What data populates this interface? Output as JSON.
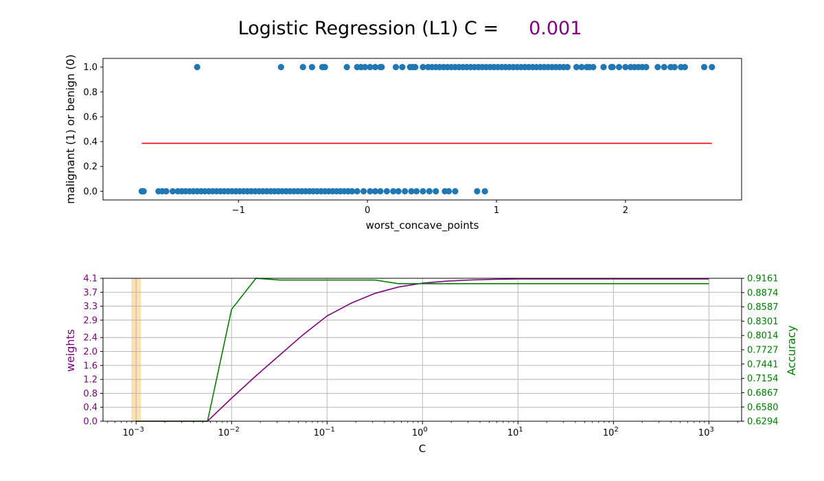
{
  "title": {
    "prefix": "Logistic Regression (L1) C =",
    "value": "0.001",
    "value_color": "#800080"
  },
  "chart_data": [
    {
      "type": "scatter",
      "xlabel": "worst_concave_points",
      "ylabel": "malignant (1) or benign (0)",
      "xlim": [
        -2.05,
        2.9
      ],
      "ylim": [
        -0.07,
        1.07
      ],
      "x_ticks": [
        -1,
        0,
        1,
        2
      ],
      "x_tick_labels": [
        "−1",
        "0",
        "1",
        "2"
      ],
      "y_ticks": [
        0.0,
        0.2,
        0.4,
        0.6,
        0.8,
        1.0
      ],
      "y_tick_labels": [
        "0.0",
        "0.2",
        "0.4",
        "0.6",
        "0.8",
        "1.0"
      ],
      "grid": false,
      "point_color": "#1f77b4",
      "series": [
        {
          "values": [
            [
              -1.75,
              0
            ],
            [
              -1.745,
              0
            ],
            [
              -1.74,
              0
            ],
            [
              -1.74,
              0
            ],
            [
              -1.735,
              0
            ],
            [
              -1.62,
              0
            ],
            [
              -1.59,
              0
            ],
            [
              -1.56,
              0
            ],
            [
              -1.51,
              0
            ],
            [
              -1.47,
              0
            ],
            [
              -1.44,
              0
            ],
            [
              -1.41,
              0
            ],
            [
              -1.38,
              0
            ],
            [
              -1.35,
              0
            ],
            [
              -1.32,
              0
            ],
            [
              -1.29,
              0
            ],
            [
              -1.26,
              0
            ],
            [
              -1.23,
              0
            ],
            [
              -1.2,
              0
            ],
            [
              -1.17,
              0
            ],
            [
              -1.14,
              0
            ],
            [
              -1.11,
              0
            ],
            [
              -1.08,
              0
            ],
            [
              -1.05,
              0
            ],
            [
              -1.02,
              0
            ],
            [
              -0.99,
              0
            ],
            [
              -0.96,
              0
            ],
            [
              -0.93,
              0
            ],
            [
              -0.9,
              0
            ],
            [
              -0.87,
              0
            ],
            [
              -0.84,
              0
            ],
            [
              -0.81,
              0
            ],
            [
              -0.78,
              0
            ],
            [
              -0.75,
              0
            ],
            [
              -0.72,
              0
            ],
            [
              -0.69,
              0
            ],
            [
              -0.66,
              0
            ],
            [
              -0.63,
              0
            ],
            [
              -0.6,
              0
            ],
            [
              -0.57,
              0
            ],
            [
              -0.54,
              0
            ],
            [
              -0.51,
              0
            ],
            [
              -0.48,
              0
            ],
            [
              -0.45,
              0
            ],
            [
              -0.42,
              0
            ],
            [
              -0.39,
              0
            ],
            [
              -0.36,
              0
            ],
            [
              -0.33,
              0
            ],
            [
              -0.3,
              0
            ],
            [
              -0.27,
              0
            ],
            [
              -0.24,
              0
            ],
            [
              -0.21,
              0
            ],
            [
              -0.18,
              0
            ],
            [
              -0.15,
              0
            ],
            [
              -0.12,
              0
            ],
            [
              -0.08,
              0
            ],
            [
              -0.03,
              0
            ],
            [
              0.02,
              0
            ],
            [
              0.06,
              0
            ],
            [
              0.1,
              0
            ],
            [
              0.15,
              0
            ],
            [
              0.2,
              0
            ],
            [
              0.24,
              0
            ],
            [
              0.29,
              0
            ],
            [
              0.34,
              0
            ],
            [
              0.38,
              0
            ],
            [
              0.43,
              0
            ],
            [
              0.48,
              0
            ],
            [
              0.53,
              0
            ],
            [
              0.6,
              0
            ],
            [
              0.63,
              0
            ],
            [
              0.68,
              0
            ],
            [
              0.85,
              0
            ],
            [
              0.91,
              0
            ],
            [
              -1.32,
              1
            ],
            [
              -0.67,
              1
            ],
            [
              -0.5,
              1
            ],
            [
              -0.43,
              1
            ],
            [
              -0.35,
              1
            ],
            [
              -0.33,
              1
            ],
            [
              -0.16,
              1
            ],
            [
              -0.08,
              1
            ],
            [
              -0.05,
              1
            ],
            [
              -0.02,
              1
            ],
            [
              0.02,
              1
            ],
            [
              0.06,
              1
            ],
            [
              0.1,
              1
            ],
            [
              0.11,
              1
            ],
            [
              0.22,
              1
            ],
            [
              0.27,
              1
            ],
            [
              0.33,
              1
            ],
            [
              0.35,
              1
            ],
            [
              0.37,
              1
            ],
            [
              0.43,
              1
            ],
            [
              0.47,
              1
            ],
            [
              0.5,
              1
            ],
            [
              0.53,
              1
            ],
            [
              0.56,
              1
            ],
            [
              0.59,
              1
            ],
            [
              0.62,
              1
            ],
            [
              0.65,
              1
            ],
            [
              0.68,
              1
            ],
            [
              0.71,
              1
            ],
            [
              0.74,
              1
            ],
            [
              0.77,
              1
            ],
            [
              0.8,
              1
            ],
            [
              0.83,
              1
            ],
            [
              0.86,
              1
            ],
            [
              0.89,
              1
            ],
            [
              0.92,
              1
            ],
            [
              0.95,
              1
            ],
            [
              0.98,
              1
            ],
            [
              1.01,
              1
            ],
            [
              1.04,
              1
            ],
            [
              1.07,
              1
            ],
            [
              1.1,
              1
            ],
            [
              1.13,
              1
            ],
            [
              1.16,
              1
            ],
            [
              1.19,
              1
            ],
            [
              1.22,
              1
            ],
            [
              1.25,
              1
            ],
            [
              1.28,
              1
            ],
            [
              1.31,
              1
            ],
            [
              1.34,
              1
            ],
            [
              1.37,
              1
            ],
            [
              1.4,
              1
            ],
            [
              1.43,
              1
            ],
            [
              1.46,
              1
            ],
            [
              1.49,
              1
            ],
            [
              1.52,
              1
            ],
            [
              1.55,
              1
            ],
            [
              1.62,
              1
            ],
            [
              1.66,
              1
            ],
            [
              1.7,
              1
            ],
            [
              1.72,
              1
            ],
            [
              1.75,
              1
            ],
            [
              1.83,
              1
            ],
            [
              1.89,
              1
            ],
            [
              1.9,
              1
            ],
            [
              1.95,
              1
            ],
            [
              2.0,
              1
            ],
            [
              2.04,
              1
            ],
            [
              2.07,
              1
            ],
            [
              2.1,
              1
            ],
            [
              2.13,
              1
            ],
            [
              2.16,
              1
            ],
            [
              2.25,
              1
            ],
            [
              2.3,
              1
            ],
            [
              2.35,
              1
            ],
            [
              2.38,
              1
            ],
            [
              2.43,
              1
            ],
            [
              2.46,
              1
            ],
            [
              2.61,
              1
            ],
            [
              2.67,
              1
            ]
          ]
        },
        {
          "kind": "line",
          "color": "#ff0000",
          "values": [
            [
              -1.75,
              0.386
            ],
            [
              2.67,
              0.386
            ]
          ]
        }
      ]
    },
    {
      "type": "line",
      "xlabel": "C",
      "x_scale": "log",
      "xlim": [
        0.00045,
        2200
      ],
      "x_ticks": [
        0.001,
        0.01,
        0.1,
        1,
        10,
        100,
        1000
      ],
      "x_tick_bases": [
        "10",
        "10",
        "10",
        "10",
        "10",
        "10",
        "10"
      ],
      "x_tick_exponents": [
        "−3",
        "−2",
        "−1",
        "0",
        "1",
        "2",
        "3"
      ],
      "grid": true,
      "highlight": {
        "x": 0.001,
        "color": "#ffe0b0"
      },
      "left_axis": {
        "label": "weights",
        "color": "#800080",
        "ylim": [
          0.0,
          4.1
        ],
        "ticks": [
          0.0,
          0.4,
          0.8,
          1.2,
          1.6,
          2.0,
          2.4,
          2.9,
          3.3,
          3.7,
          4.1
        ],
        "tick_labels": [
          "0.0",
          "0.4",
          "0.8",
          "1.2",
          "1.6",
          "2.0",
          "2.4",
          "2.9",
          "3.3",
          "3.7",
          "4.1"
        ]
      },
      "right_axis": {
        "label": "Accuracy",
        "color": "#008000",
        "ylim": [
          0.6294,
          0.9161
        ],
        "ticks": [
          0.6294,
          0.658,
          0.6867,
          0.7154,
          0.7441,
          0.7727,
          0.8014,
          0.8301,
          0.8587,
          0.8874,
          0.9161
        ],
        "tick_labels": [
          "0.6294",
          "0.6580",
          "0.6867",
          "0.7154",
          "0.7441",
          "0.7727",
          "0.8014",
          "0.8301",
          "0.8587",
          "0.8874",
          "0.9161"
        ]
      },
      "series": [
        {
          "axis": "left",
          "color": "#800080",
          "x": [
            0.001,
            0.0018,
            0.0032,
            0.0056,
            0.01,
            0.018,
            0.032,
            0.056,
            0.1,
            0.18,
            0.32,
            0.56,
            1,
            1.8,
            3.2,
            5.6,
            10,
            18,
            32,
            56,
            100,
            180,
            320,
            560,
            1000
          ],
          "values": [
            0.0,
            0.0,
            0.0,
            0.0,
            0.66,
            1.3,
            1.9,
            2.48,
            3.02,
            3.39,
            3.67,
            3.85,
            3.96,
            4.02,
            4.05,
            4.07,
            4.08,
            4.08,
            4.08,
            4.08,
            4.08,
            4.08,
            4.08,
            4.08,
            4.08
          ]
        },
        {
          "axis": "right",
          "color": "#008000",
          "x": [
            0.001,
            0.0018,
            0.0032,
            0.0056,
            0.01,
            0.018,
            0.032,
            0.056,
            0.1,
            0.18,
            0.32,
            0.56,
            1,
            1.8,
            3.2,
            5.6,
            10,
            18,
            32,
            56,
            100,
            180,
            320,
            560,
            1000
          ],
          "values": [
            0.6294,
            0.6294,
            0.6294,
            0.6294,
            0.8537,
            0.9161,
            0.9125,
            0.9125,
            0.9125,
            0.9125,
            0.9125,
            0.9054,
            0.9054,
            0.9054,
            0.9054,
            0.9054,
            0.9054,
            0.9054,
            0.9054,
            0.9054,
            0.9054,
            0.9054,
            0.9054,
            0.9054,
            0.9054
          ]
        }
      ]
    }
  ]
}
